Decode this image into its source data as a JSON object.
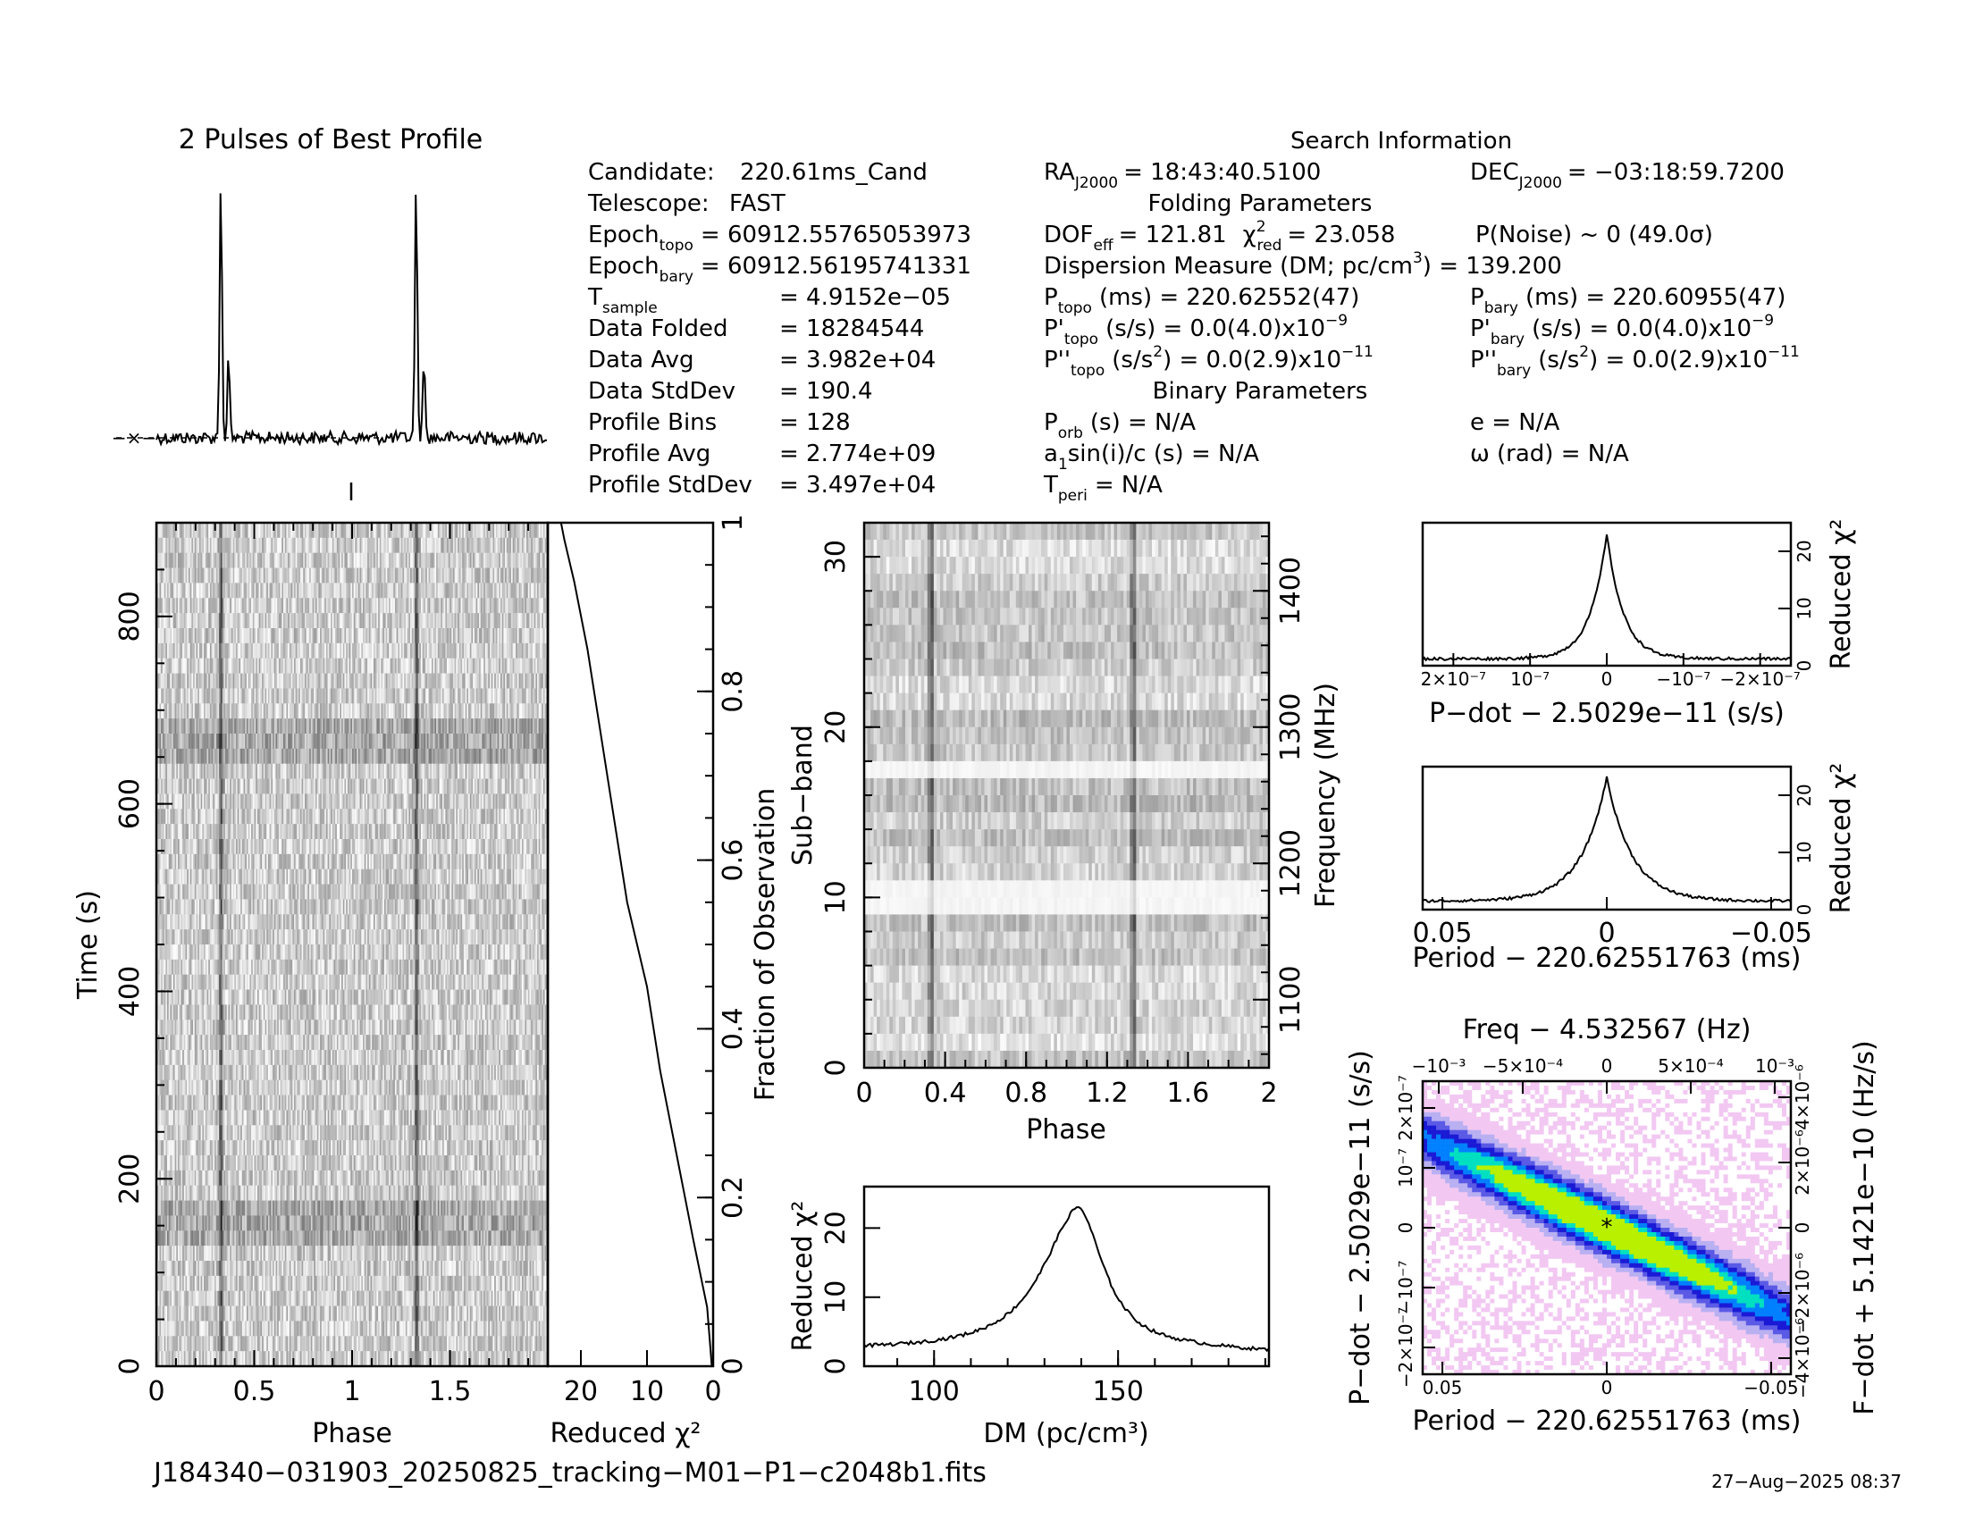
{
  "profile": {
    "title": "2 Pulses of Best Profile",
    "errorbar_glyph": "−×−"
  },
  "info": {
    "left": [
      {
        "label": "Candidate:",
        "value": "220.61ms_Cand"
      },
      {
        "label": "Telescope:",
        "value": "FAST"
      },
      {
        "label": "Epoch",
        "sub": "topo",
        "value": "= 60912.55765053973"
      },
      {
        "label": "Epoch",
        "sub": "bary",
        "value": "= 60912.56195741331"
      },
      {
        "label": "T",
        "sub": "sample",
        "value": "=  4.9152e−05"
      },
      {
        "label": "Data Folded",
        "value": "=  18284544"
      },
      {
        "label": "Data Avg",
        "value": "=  3.982e+04"
      },
      {
        "label": "Data StdDev",
        "value": "=  190.4"
      },
      {
        "label": "Profile Bins",
        "value": "=  128"
      },
      {
        "label": "Profile Avg",
        "value": "=  2.774e+09"
      },
      {
        "label": "Profile StdDev",
        "value": "=  3.497e+04"
      }
    ],
    "search_header": "Search Information",
    "ra": "RA",
    "ra_sub": "J2000",
    "ra_value": "= 18:43:40.5100",
    "dec": "DEC",
    "dec_sub": "J2000",
    "dec_value": "= −03:18:59.7200",
    "folding_header": "Folding Parameters",
    "dof": "DOF",
    "dof_sub": "eff",
    "dof_value": "= 121.81",
    "chi": "χ",
    "chi_sup": "2",
    "chi_sub": "red",
    "chi_value": "= 23.058",
    "pnoise": "P(Noise) ~ 0    (49.0σ)",
    "dm_line": "Dispersion Measure (DM; pc/cm",
    "dm_sup": "3",
    "dm_value": ") = 139.200",
    "ptopo": "P",
    "ptopo_sub": "topo",
    "ptopo_value": "(ms) =  220.62552(47)",
    "pbary": "P",
    "pbary_sub": "bary",
    "pbary_value": "(ms) =  220.60955(47)",
    "pdtopo": "P'",
    "pdtopo_sub": "topo",
    "pdtopo_value": "(s/s) = 0.0(4.0)x10",
    "pdtopo_exp": "−9",
    "pdbary": "P'",
    "pdbary_sub": "bary",
    "pdbary_value": "(s/s) = 0.0(4.0)x10",
    "pdbary_exp": "−9",
    "pddtopo": "P''",
    "pddtopo_sub": "topo",
    "pddtopo_value": "(s/s",
    "pddtopo_sup": "2",
    "pddtopo_value2": ") = 0.0(2.9)x10",
    "pddtopo_exp": "−11",
    "pddbary": "P''",
    "pddbary_sub": "bary",
    "pddbary_value": "(s/s",
    "pddbary_sup": "2",
    "pddbary_value2": ") = 0.0(2.9)x10",
    "pddbary_exp": "−11",
    "binary_header": "Binary Parameters",
    "porb": "P",
    "porb_sub": "orb",
    "porb_value": "(s) = N/A",
    "ecc": "e = N/A",
    "a1": "a",
    "a1_sub": "1",
    "a1_value": "sin(i)/c (s) = N/A",
    "omega": "ω (rad) = N/A",
    "tperi": "T",
    "tperi_sub": "peri",
    "tperi_value": "= N/A"
  },
  "footer": {
    "filename": "J184340−031903_20250825_tracking−M01−P1−c2048b1.fits",
    "timestamp": "27−Aug−2025 08:37"
  },
  "chart_data": [
    {
      "type": "line",
      "name": "profile",
      "title": "2 Pulses of Best Profile",
      "x_phase": [
        0,
        2
      ],
      "peaks_phase": [
        0.33,
        1.33
      ],
      "peak_relative_height": 1.0,
      "secondary_peak_phase": [
        0.37,
        1.37
      ],
      "secondary_relative_height": 0.31
    },
    {
      "type": "heatmap",
      "name": "time-phase",
      "xlabel": "Phase",
      "ylabel": "Time (s)",
      "x_ticks": [
        "0",
        "0.5",
        "1",
        "1.5"
      ],
      "y_ticks": [
        "0",
        "200",
        "400",
        "600",
        "800"
      ],
      "xlim": [
        0,
        2
      ],
      "ylim": [
        0,
        900
      ],
      "pulse_phase": [
        0.33,
        1.33
      ]
    },
    {
      "type": "line",
      "name": "chi-vs-time",
      "xlabel": "Reduced χ²",
      "ylabel": "Fraction of Observation",
      "x_ticks": [
        "20",
        "10",
        "0"
      ],
      "y_ticks": [
        "0",
        "0.2",
        "0.4",
        "0.6",
        "0.8",
        "1"
      ],
      "xlim": [
        25,
        0
      ],
      "ylim": [
        0,
        1
      ],
      "points": [
        [
          0.2,
          0.0
        ],
        [
          0.5,
          0.03
        ],
        [
          0.9,
          0.07
        ],
        [
          3,
          0.15
        ],
        [
          5.5,
          0.25
        ],
        [
          8,
          0.35
        ],
        [
          10,
          0.45
        ],
        [
          13,
          0.55
        ],
        [
          15,
          0.65
        ],
        [
          17,
          0.75
        ],
        [
          19,
          0.85
        ],
        [
          21,
          0.93
        ],
        [
          22.5,
          0.98
        ],
        [
          23,
          1.0
        ]
      ]
    },
    {
      "type": "heatmap",
      "name": "subband-phase",
      "xlabel": "Phase",
      "ylabel": "Sub−band",
      "ylabel2": "Frequency (MHz)",
      "x_ticks": [
        "0",
        "0.4",
        "0.8",
        "1.2",
        "1.6",
        "2"
      ],
      "y_ticks": [
        "0",
        "10",
        "20",
        "30"
      ],
      "y2_ticks": [
        "1100",
        "1200",
        "1300",
        "1400"
      ],
      "xlim": [
        0,
        2
      ],
      "ylim": [
        0,
        32
      ],
      "freq_range_mhz": [
        1050,
        1450
      ],
      "bright_subbands": [
        17,
        10,
        9
      ],
      "pulse_phase": [
        0.33,
        1.33
      ]
    },
    {
      "type": "line",
      "name": "chi-vs-dm",
      "xlabel": "DM (pc/cm³)",
      "ylabel": "Reduced χ²",
      "x_ticks": [
        "100",
        "150"
      ],
      "y_ticks": [
        "0",
        "10",
        "20"
      ],
      "xlim": [
        81,
        191
      ],
      "ylim": [
        0,
        26
      ],
      "peak": [
        139.2,
        23.1
      ],
      "baseline": 2.5
    },
    {
      "type": "line",
      "name": "chi-vs-pdot",
      "xlabel": "P−dot − 2.5029e−11 (s/s)",
      "ylabel": "Reduced χ²",
      "x_ticks": [
        "2×10⁻⁷",
        "10⁻⁷",
        "0",
        "−10⁻⁷",
        "−2×10⁻⁷"
      ],
      "y_ticks": [
        "0",
        "10",
        "20"
      ],
      "xlim": [
        2.4e-07,
        -2.4e-07
      ],
      "ylim": [
        0,
        25
      ],
      "peak": [
        0,
        23.1
      ],
      "baseline": 1.2
    },
    {
      "type": "line",
      "name": "chi-vs-period",
      "xlabel": "Period − 220.62551763 (ms)",
      "ylabel": "Reduced χ²",
      "x_ticks": [
        "0.05",
        "0",
        "−0.05"
      ],
      "y_ticks": [
        "0",
        "10",
        "20"
      ],
      "xlim": [
        0.056,
        -0.056
      ],
      "ylim": [
        0,
        25
      ],
      "peak": [
        0,
        23.1
      ],
      "baseline": 1.5
    },
    {
      "type": "heatmap",
      "name": "period-pdot",
      "title": "Freq − 4.532567 (Hz)",
      "xlabel": "Period − 220.62551763 (ms)",
      "ylabel": "P−dot − 2.5029e−11 (s/s)",
      "ylabel2": "F−dot + 5.1421e−10 (Hz/s)",
      "x_ticks": [
        "0.05",
        "0",
        "−0.05"
      ],
      "top_ticks": [
        "−10⁻³",
        "−5×10⁻⁴",
        "0",
        "5×10⁻⁴",
        "10⁻³"
      ],
      "y_ticks": [
        "2×10⁻⁷",
        "10⁻⁷",
        "0",
        "−10⁻⁷",
        "−2×10⁻⁷"
      ],
      "y2_ticks": [
        "−4×10⁻⁶",
        "−2×10⁻⁶",
        "0",
        "2×10⁻⁶",
        "4×10⁻⁶"
      ],
      "colors": [
        "#ffffff",
        "#f2c8f2",
        "#b9b0f2",
        "#5a5ae6",
        "#1a1ad6",
        "#0080ff",
        "#00e0c0",
        "#b8f000",
        "#ffd000"
      ],
      "best": [
        0,
        0
      ]
    }
  ]
}
